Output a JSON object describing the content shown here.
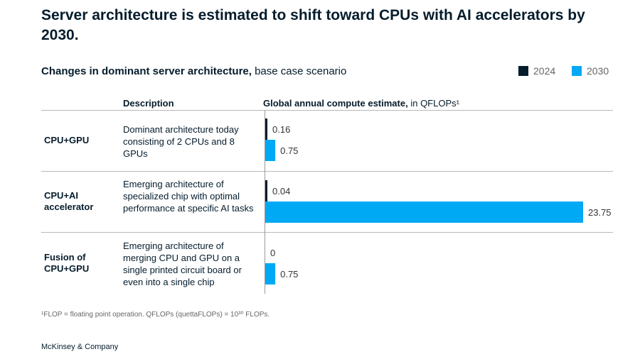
{
  "title": "Server architecture is estimated to shift toward CPUs with AI accelerators by 2030.",
  "subtitle_bold": "Changes in dominant server architecture,",
  "subtitle_rest": "base case scenario",
  "column_headers": {
    "description": "Description",
    "estimate_bold": "Global annual compute estimate,",
    "estimate_rest": "in QFLOPs¹"
  },
  "rows": [
    {
      "label_line1": "CPU+GPU",
      "label_line2": "",
      "description": "Dominant architecture today consisting of 2 CPUs and 8 GPUs"
    },
    {
      "label_line1": "CPU+AI",
      "label_line2": "accelerator",
      "description": "Emerging architecture of specialized chip with optimal performance at specific AI tasks"
    },
    {
      "label_line1": "Fusion of",
      "label_line2": "CPU+GPU",
      "description": "Emerging architecture of merging CPU and GPU on a single printed circuit board or even into a single chip"
    }
  ],
  "colors": {
    "2024": "#051c2c",
    "2030": "#00a9f4"
  },
  "footnote": "¹FLOP = floating point operation. QFLOPs (quettaFLOPs) = 10³⁰ FLOPs.",
  "brand": "McKinsey & Company",
  "chart_data": {
    "type": "bar",
    "orientation": "horizontal",
    "title": "Changes in dominant server architecture, base case scenario",
    "xlabel": "Global annual compute estimate, in QFLOPs",
    "categories": [
      "CPU+GPU",
      "CPU+AI accelerator",
      "Fusion of CPU+GPU"
    ],
    "series": [
      {
        "name": "2024",
        "values": [
          0.16,
          0.04,
          0
        ],
        "labels": [
          "0.16",
          "0.04",
          "0"
        ]
      },
      {
        "name": "2030",
        "values": [
          0.75,
          23.75,
          0.75
        ],
        "labels": [
          "0.75",
          "23.75",
          "0.75"
        ]
      }
    ],
    "xlim": [
      0,
      23.75
    ],
    "legend_position": "top-right"
  }
}
